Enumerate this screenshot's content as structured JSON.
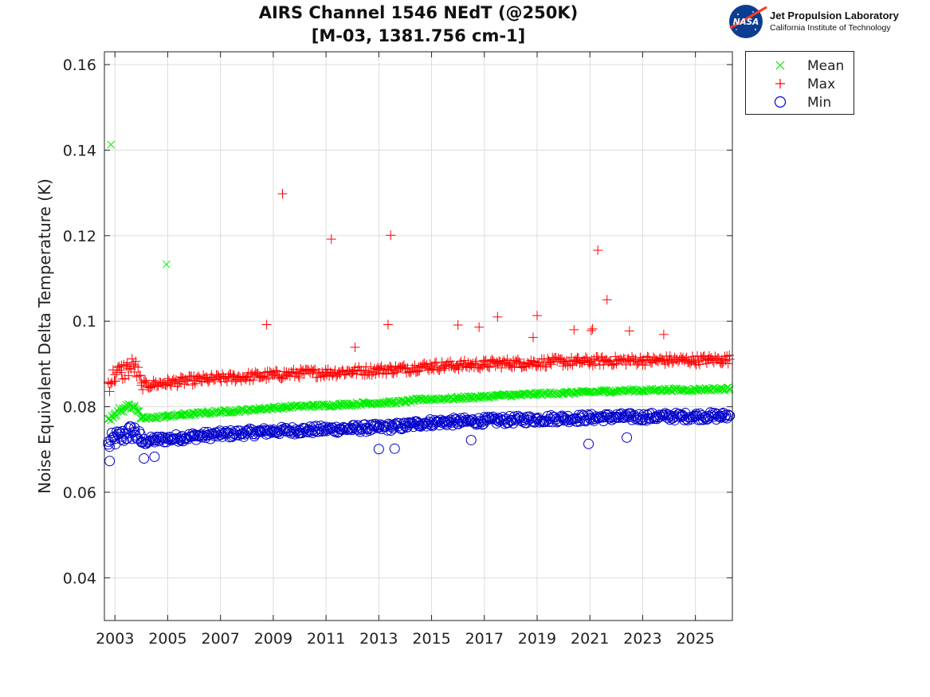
{
  "logo": {
    "name": "Jet Propulsion Laboratory",
    "subtitle": "California Institute of Technology",
    "badge": "NASA"
  },
  "chart_data": {
    "type": "scatter",
    "title": "AIRS Channel 1546 NEdT (@250K)",
    "subtitle": "[M-03, 1381.756 cm-1]",
    "xlabel": "",
    "ylabel": "Noise Equivalent Delta Temperature (K)",
    "xlim": [
      2002.6,
      2026.4
    ],
    "ylim": [
      0.03,
      0.163
    ],
    "xticks": [
      "2003",
      "2005",
      "2007",
      "2009",
      "2011",
      "2013",
      "2015",
      "2017",
      "2019",
      "2021",
      "2023",
      "2025"
    ],
    "yticks": [
      "0.04",
      "0.06",
      "0.08",
      "0.1",
      "0.12",
      "0.14",
      "0.16"
    ],
    "grid": true,
    "legend_position": "outside-top-right",
    "colors": {
      "mean": "#00ee00",
      "max": "#ff0000",
      "min": "#0000cc"
    },
    "series": [
      {
        "name": "Mean",
        "marker": "x",
        "x": [
          2002.75,
          2003.0,
          2003.25,
          2003.5,
          2003.75,
          2004.0,
          2004.5,
          2005.0,
          2005.5,
          2006.0,
          2006.5,
          2007.0,
          2007.5,
          2008.0,
          2008.5,
          2009.0,
          2009.5,
          2010.0,
          2010.5,
          2011.0,
          2011.5,
          2012.0,
          2012.5,
          2013.0,
          2013.5,
          2014.0,
          2014.5,
          2015.0,
          2015.5,
          2016.0,
          2016.5,
          2017.0,
          2017.5,
          2018.0,
          2018.5,
          2019.0,
          2019.5,
          2020.0,
          2020.5,
          2021.0,
          2021.5,
          2022.0,
          2022.5,
          2023.0,
          2023.5,
          2024.0,
          2024.5,
          2025.0,
          2025.5,
          2026.0,
          2026.3,
          2002.85,
          2004.95
        ],
        "y": [
          0.0772,
          0.0785,
          0.0792,
          0.0801,
          0.0803,
          0.0772,
          0.0775,
          0.0778,
          0.0781,
          0.0783,
          0.0786,
          0.0788,
          0.079,
          0.0792,
          0.0795,
          0.0797,
          0.0799,
          0.0801,
          0.0802,
          0.0803,
          0.0805,
          0.0806,
          0.0808,
          0.0809,
          0.081,
          0.0812,
          0.0816,
          0.0818,
          0.0819,
          0.082,
          0.0822,
          0.0823,
          0.0826,
          0.0827,
          0.0828,
          0.083,
          0.0831,
          0.0832,
          0.0833,
          0.0834,
          0.0836,
          0.0837,
          0.0838,
          0.0838,
          0.0839,
          0.084,
          0.0839,
          0.084,
          0.0841,
          0.0841,
          0.0842,
          0.1413,
          0.1133
        ]
      },
      {
        "name": "Max",
        "marker": "+",
        "x": [
          2002.75,
          2003.0,
          2003.25,
          2003.5,
          2003.75,
          2004.0,
          2004.5,
          2005.0,
          2005.5,
          2006.0,
          2006.5,
          2007.0,
          2007.5,
          2008.0,
          2008.5,
          2009.0,
          2009.5,
          2010.0,
          2010.5,
          2011.0,
          2011.5,
          2012.0,
          2012.5,
          2013.0,
          2013.5,
          2014.0,
          2014.5,
          2015.0,
          2015.5,
          2016.0,
          2016.5,
          2017.0,
          2017.5,
          2018.0,
          2018.5,
          2019.0,
          2019.5,
          2020.0,
          2020.5,
          2021.0,
          2021.5,
          2022.0,
          2022.5,
          2023.0,
          2023.5,
          2024.0,
          2024.5,
          2025.0,
          2025.5,
          2026.0,
          2026.3,
          2008.75,
          2009.35,
          2011.2,
          2012.1,
          2013.35,
          2013.45,
          2016.0,
          2016.8,
          2017.5,
          2018.85,
          2019.0,
          2020.4,
          2021.05,
          2021.1,
          2021.3,
          2021.65,
          2022.5,
          2023.8
        ],
        "y": [
          0.0855,
          0.0875,
          0.088,
          0.089,
          0.0895,
          0.085,
          0.0853,
          0.0856,
          0.0859,
          0.0862,
          0.0864,
          0.0866,
          0.0868,
          0.087,
          0.0872,
          0.0874,
          0.0876,
          0.0878,
          0.0879,
          0.088,
          0.0881,
          0.0883,
          0.0884,
          0.0886,
          0.0887,
          0.0889,
          0.0893,
          0.0895,
          0.0896,
          0.0897,
          0.0898,
          0.0899,
          0.0901,
          0.0902,
          0.0902,
          0.0903,
          0.0904,
          0.0905,
          0.0905,
          0.0906,
          0.0907,
          0.0907,
          0.0908,
          0.0908,
          0.0908,
          0.0909,
          0.0909,
          0.0909,
          0.091,
          0.091,
          0.0911,
          0.0992,
          0.1298,
          0.1192,
          0.0939,
          0.0992,
          0.1201,
          0.0991,
          0.0986,
          0.101,
          0.0962,
          0.1013,
          0.098,
          0.0978,
          0.0982,
          0.1166,
          0.105,
          0.0977,
          0.0969
        ]
      },
      {
        "name": "Min",
        "marker": "o",
        "x": [
          2002.75,
          2003.0,
          2003.25,
          2003.5,
          2003.75,
          2004.0,
          2004.5,
          2005.0,
          2005.5,
          2006.0,
          2006.5,
          2007.0,
          2007.5,
          2008.0,
          2008.5,
          2009.0,
          2009.5,
          2010.0,
          2010.5,
          2011.0,
          2011.5,
          2012.0,
          2012.5,
          2013.0,
          2013.5,
          2014.0,
          2014.5,
          2015.0,
          2015.5,
          2016.0,
          2016.5,
          2017.0,
          2017.5,
          2018.0,
          2018.5,
          2019.0,
          2019.5,
          2020.0,
          2020.5,
          2021.0,
          2021.5,
          2022.0,
          2022.5,
          2023.0,
          2023.5,
          2024.0,
          2024.5,
          2025.0,
          2025.5,
          2026.0,
          2026.3,
          2002.8,
          2004.1,
          2004.5,
          2013.0,
          2013.6,
          2016.5,
          2020.95,
          2022.4
        ],
        "y": [
          0.0712,
          0.0725,
          0.073,
          0.0738,
          0.0742,
          0.0718,
          0.0722,
          0.0725,
          0.0728,
          0.0731,
          0.0733,
          0.0735,
          0.0737,
          0.0739,
          0.0741,
          0.0743,
          0.0744,
          0.0745,
          0.0746,
          0.0747,
          0.0748,
          0.0749,
          0.075,
          0.0751,
          0.0753,
          0.0755,
          0.0761,
          0.0763,
          0.0764,
          0.0765,
          0.0766,
          0.0767,
          0.0768,
          0.0769,
          0.077,
          0.0771,
          0.0772,
          0.0773,
          0.0773,
          0.0774,
          0.0775,
          0.0776,
          0.0776,
          0.0776,
          0.0777,
          0.0777,
          0.0777,
          0.0778,
          0.0778,
          0.0778,
          0.0779,
          0.0673,
          0.0679,
          0.0683,
          0.0701,
          0.0702,
          0.0722,
          0.0713,
          0.0728
        ]
      }
    ]
  }
}
